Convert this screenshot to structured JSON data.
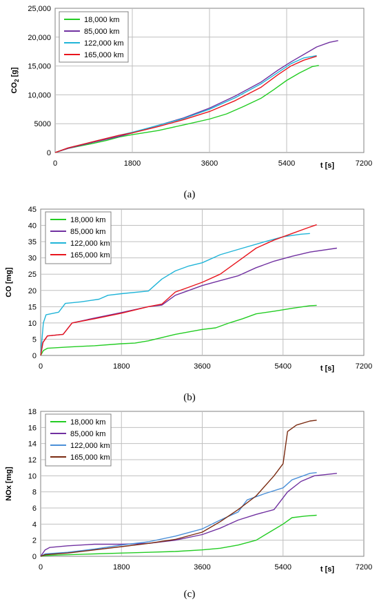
{
  "chart_data": [
    {
      "type": "line",
      "caption": "(a)",
      "ylabel": "CO",
      "ylabel_sub": "2",
      "ylabel_unit": " [g]",
      "xlabel": "t [s]",
      "xlim": [
        0,
        7200
      ],
      "ylim": [
        0,
        25000
      ],
      "x_ticks": [
        0,
        1800,
        3600,
        5400,
        7200
      ],
      "x_tick_labels": [
        "0",
        "1800",
        "3600",
        "5400",
        "7200"
      ],
      "y_ticks": [
        0,
        5000,
        10000,
        15000,
        20000,
        25000
      ],
      "y_tick_labels": [
        "0",
        "5000",
        "10,000",
        "15,000",
        "20,000",
        "25,000"
      ],
      "grid": true,
      "legend_position": "top-left",
      "series": [
        {
          "name": "18,000 km",
          "color": "#22cc22",
          "points": [
            [
              0,
              0
            ],
            [
              300,
              700
            ],
            [
              900,
              1600
            ],
            [
              1200,
              2100
            ],
            [
              1500,
              2700
            ],
            [
              1800,
              3100
            ],
            [
              2400,
              3800
            ],
            [
              3000,
              4800
            ],
            [
              3600,
              5800
            ],
            [
              4000,
              6700
            ],
            [
              4400,
              8000
            ],
            [
              4800,
              9400
            ],
            [
              5100,
              10900
            ],
            [
              5400,
              12500
            ],
            [
              5700,
              13800
            ],
            [
              6000,
              14900
            ],
            [
              6150,
              15100
            ]
          ]
        },
        {
          "name": "85,000 km",
          "color": "#7030a0",
          "points": [
            [
              0,
              0
            ],
            [
              300,
              700
            ],
            [
              900,
              1800
            ],
            [
              1500,
              2800
            ],
            [
              1800,
              3400
            ],
            [
              2400,
              4700
            ],
            [
              3000,
              6000
            ],
            [
              3600,
              7700
            ],
            [
              4200,
              9800
            ],
            [
              4800,
              12200
            ],
            [
              5200,
              14300
            ],
            [
              5500,
              15700
            ],
            [
              5800,
              17000
            ],
            [
              6100,
              18300
            ],
            [
              6400,
              19100
            ],
            [
              6600,
              19400
            ]
          ]
        },
        {
          "name": "122,000 km",
          "color": "#1fb4d8",
          "points": [
            [
              0,
              0
            ],
            [
              300,
              800
            ],
            [
              900,
              1900
            ],
            [
              1500,
              3000
            ],
            [
              1800,
              3500
            ],
            [
              2400,
              4700
            ],
            [
              3000,
              5900
            ],
            [
              3600,
              7500
            ],
            [
              4200,
              9500
            ],
            [
              4800,
              11900
            ],
            [
              5200,
              13900
            ],
            [
              5500,
              15400
            ],
            [
              5800,
              16400
            ],
            [
              6100,
              16800
            ]
          ]
        },
        {
          "name": "165,000 km",
          "color": "#e8141c",
          "points": [
            [
              0,
              0
            ],
            [
              300,
              800
            ],
            [
              900,
              1900
            ],
            [
              1500,
              3000
            ],
            [
              1800,
              3400
            ],
            [
              2400,
              4500
            ],
            [
              3000,
              5700
            ],
            [
              3600,
              7100
            ],
            [
              4200,
              9000
            ],
            [
              4800,
              11300
            ],
            [
              5200,
              13500
            ],
            [
              5500,
              15000
            ],
            [
              5800,
              16000
            ],
            [
              6100,
              16700
            ]
          ]
        }
      ]
    },
    {
      "type": "line",
      "caption": "(b)",
      "ylabel": "CO [mg]",
      "xlabel": "t [s]",
      "xlim": [
        0,
        7200
      ],
      "ylim": [
        0,
        45
      ],
      "x_ticks": [
        0,
        1800,
        3600,
        5400,
        7200
      ],
      "x_tick_labels": [
        "0",
        "1800",
        "3600",
        "5400",
        "7200"
      ],
      "y_ticks": [
        0,
        5,
        10,
        15,
        20,
        25,
        30,
        35,
        40,
        45
      ],
      "y_tick_labels": [
        "0",
        "5",
        "10",
        "15",
        "20",
        "25",
        "30",
        "35",
        "40",
        "45"
      ],
      "grid": true,
      "legend_position": "top-left",
      "series": [
        {
          "name": "18,000 km",
          "color": "#22cc22",
          "points": [
            [
              0,
              0
            ],
            [
              60,
              1.5
            ],
            [
              150,
              2.2
            ],
            [
              600,
              2.6
            ],
            [
              1200,
              3.0
            ],
            [
              1800,
              3.6
            ],
            [
              2100,
              3.8
            ],
            [
              2400,
              4.5
            ],
            [
              3000,
              6.5
            ],
            [
              3600,
              8.0
            ],
            [
              3900,
              8.5
            ],
            [
              4200,
              10.0
            ],
            [
              4500,
              11.3
            ],
            [
              4800,
              12.8
            ],
            [
              5200,
              13.6
            ],
            [
              5600,
              14.5
            ],
            [
              6000,
              15.3
            ],
            [
              6150,
              15.4
            ]
          ]
        },
        {
          "name": "85,000 km",
          "color": "#7030a0",
          "points": [
            [
              0,
              0
            ],
            [
              50,
              4
            ],
            [
              150,
              6.0
            ],
            [
              500,
              6.5
            ],
            [
              700,
              10.0
            ],
            [
              1200,
              11.5
            ],
            [
              1800,
              13.2
            ],
            [
              2400,
              15.0
            ],
            [
              2700,
              15.5
            ],
            [
              3000,
              18.5
            ],
            [
              3300,
              20.0
            ],
            [
              3600,
              21.5
            ],
            [
              4000,
              23.0
            ],
            [
              4400,
              24.5
            ],
            [
              4800,
              27.0
            ],
            [
              5200,
              29.0
            ],
            [
              5600,
              30.5
            ],
            [
              6000,
              31.8
            ],
            [
              6600,
              33.0
            ]
          ]
        },
        {
          "name": "122,000 km",
          "color": "#1fb4d8",
          "points": [
            [
              0,
              0
            ],
            [
              60,
              10
            ],
            [
              120,
              12.5
            ],
            [
              400,
              13.3
            ],
            [
              550,
              16.0
            ],
            [
              900,
              16.5
            ],
            [
              1300,
              17.3
            ],
            [
              1500,
              18.5
            ],
            [
              1800,
              19.0
            ],
            [
              2400,
              19.8
            ],
            [
              2700,
              23.5
            ],
            [
              3000,
              26.0
            ],
            [
              3300,
              27.5
            ],
            [
              3600,
              28.5
            ],
            [
              4000,
              31.0
            ],
            [
              4500,
              33.0
            ],
            [
              5000,
              35.0
            ],
            [
              5400,
              36.5
            ],
            [
              5800,
              37.3
            ],
            [
              6000,
              37.5
            ]
          ]
        },
        {
          "name": "165,000 km",
          "color": "#e8141c",
          "points": [
            [
              0,
              0
            ],
            [
              50,
              4
            ],
            [
              150,
              6.0
            ],
            [
              500,
              6.5
            ],
            [
              700,
              10.0
            ],
            [
              1200,
              11.3
            ],
            [
              1800,
              13.0
            ],
            [
              2400,
              15.0
            ],
            [
              2700,
              15.8
            ],
            [
              3000,
              19.5
            ],
            [
              3300,
              21.0
            ],
            [
              3600,
              22.5
            ],
            [
              4000,
              25.0
            ],
            [
              4400,
              29.0
            ],
            [
              4800,
              33.0
            ],
            [
              5200,
              35.5
            ],
            [
              5600,
              37.5
            ],
            [
              6000,
              39.5
            ],
            [
              6150,
              40.2
            ]
          ]
        }
      ]
    },
    {
      "type": "line",
      "caption": "(c)",
      "ylabel": "NOx [mg]",
      "xlabel": "t [s]",
      "xlim": [
        0,
        7200
      ],
      "ylim": [
        0,
        18
      ],
      "x_ticks": [
        0,
        1800,
        3600,
        5400,
        7200
      ],
      "x_tick_labels": [
        "0",
        "1800",
        "3600",
        "5400",
        "7200"
      ],
      "y_ticks": [
        0,
        2,
        4,
        6,
        8,
        10,
        12,
        14,
        16,
        18
      ],
      "y_tick_labels": [
        "0",
        "2",
        "4",
        "6",
        "8",
        "10",
        "12",
        "14",
        "16",
        "18"
      ],
      "grid": true,
      "legend_position": "top-left",
      "series": [
        {
          "name": "18,000 km",
          "color": "#22cc22",
          "points": [
            [
              0,
              0
            ],
            [
              100,
              0.1
            ],
            [
              600,
              0.2
            ],
            [
              1200,
              0.3
            ],
            [
              1800,
              0.4
            ],
            [
              2400,
              0.5
            ],
            [
              3000,
              0.6
            ],
            [
              3600,
              0.8
            ],
            [
              4000,
              1.0
            ],
            [
              4400,
              1.4
            ],
            [
              4800,
              2.0
            ],
            [
              5100,
              3.0
            ],
            [
              5400,
              4.0
            ],
            [
              5600,
              4.8
            ],
            [
              5900,
              5.0
            ],
            [
              6150,
              5.1
            ]
          ]
        },
        {
          "name": "85,000 km",
          "color": "#7030a0",
          "points": [
            [
              0,
              0
            ],
            [
              100,
              0.8
            ],
            [
              200,
              1.1
            ],
            [
              600,
              1.3
            ],
            [
              1200,
              1.5
            ],
            [
              1800,
              1.5
            ],
            [
              2400,
              1.6
            ],
            [
              3000,
              2.0
            ],
            [
              3600,
              2.7
            ],
            [
              4000,
              3.5
            ],
            [
              4400,
              4.5
            ],
            [
              4800,
              5.2
            ],
            [
              5200,
              5.8
            ],
            [
              5500,
              8.0
            ],
            [
              5800,
              9.3
            ],
            [
              6100,
              10.0
            ],
            [
              6600,
              10.3
            ]
          ]
        },
        {
          "name": "122,000 km",
          "color": "#4a8fd8",
          "points": [
            [
              0,
              0
            ],
            [
              100,
              0.3
            ],
            [
              600,
              0.5
            ],
            [
              1200,
              0.9
            ],
            [
              1800,
              1.4
            ],
            [
              2400,
              1.8
            ],
            [
              3000,
              2.5
            ],
            [
              3600,
              3.4
            ],
            [
              4000,
              4.5
            ],
            [
              4400,
              5.5
            ],
            [
              4600,
              7.0
            ],
            [
              5000,
              7.8
            ],
            [
              5400,
              8.5
            ],
            [
              5600,
              9.5
            ],
            [
              6000,
              10.3
            ],
            [
              6150,
              10.4
            ]
          ]
        },
        {
          "name": "165,000 km",
          "color": "#7a2a10",
          "points": [
            [
              0,
              0
            ],
            [
              100,
              0.2
            ],
            [
              600,
              0.4
            ],
            [
              1200,
              0.8
            ],
            [
              1800,
              1.2
            ],
            [
              2400,
              1.6
            ],
            [
              3000,
              2.1
            ],
            [
              3600,
              3.0
            ],
            [
              4000,
              4.3
            ],
            [
              4400,
              5.8
            ],
            [
              4800,
              7.5
            ],
            [
              5200,
              10.0
            ],
            [
              5400,
              11.5
            ],
            [
              5500,
              15.5
            ],
            [
              5700,
              16.3
            ],
            [
              6000,
              16.8
            ],
            [
              6150,
              16.9
            ]
          ]
        }
      ]
    }
  ]
}
